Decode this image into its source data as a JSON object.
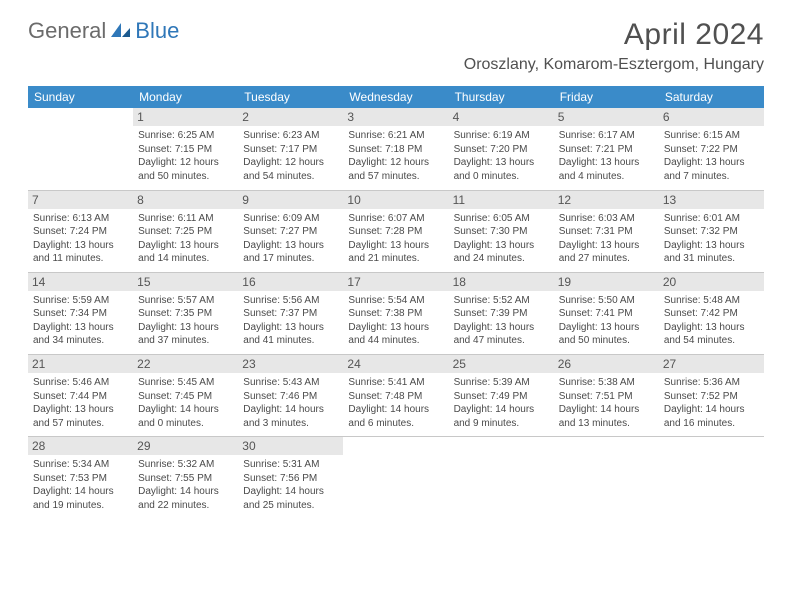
{
  "logo": {
    "general": "General",
    "blue": "Blue"
  },
  "title": "April 2024",
  "location": "Oroszlany, Komarom-Esztergom, Hungary",
  "weekdays": [
    "Sunday",
    "Monday",
    "Tuesday",
    "Wednesday",
    "Thursday",
    "Friday",
    "Saturday"
  ],
  "colors": {
    "header_bg": "#3a8bc9",
    "daynum_bg": "#e7e7e7",
    "text": "#4a4a4a",
    "border": "#c8c8c8"
  },
  "days": [
    {
      "n": "1",
      "sunrise": "6:25 AM",
      "sunset": "7:15 PM",
      "daylight": "12 hours and 50 minutes."
    },
    {
      "n": "2",
      "sunrise": "6:23 AM",
      "sunset": "7:17 PM",
      "daylight": "12 hours and 54 minutes."
    },
    {
      "n": "3",
      "sunrise": "6:21 AM",
      "sunset": "7:18 PM",
      "daylight": "12 hours and 57 minutes."
    },
    {
      "n": "4",
      "sunrise": "6:19 AM",
      "sunset": "7:20 PM",
      "daylight": "13 hours and 0 minutes."
    },
    {
      "n": "5",
      "sunrise": "6:17 AM",
      "sunset": "7:21 PM",
      "daylight": "13 hours and 4 minutes."
    },
    {
      "n": "6",
      "sunrise": "6:15 AM",
      "sunset": "7:22 PM",
      "daylight": "13 hours and 7 minutes."
    },
    {
      "n": "7",
      "sunrise": "6:13 AM",
      "sunset": "7:24 PM",
      "daylight": "13 hours and 11 minutes."
    },
    {
      "n": "8",
      "sunrise": "6:11 AM",
      "sunset": "7:25 PM",
      "daylight": "13 hours and 14 minutes."
    },
    {
      "n": "9",
      "sunrise": "6:09 AM",
      "sunset": "7:27 PM",
      "daylight": "13 hours and 17 minutes."
    },
    {
      "n": "10",
      "sunrise": "6:07 AM",
      "sunset": "7:28 PM",
      "daylight": "13 hours and 21 minutes."
    },
    {
      "n": "11",
      "sunrise": "6:05 AM",
      "sunset": "7:30 PM",
      "daylight": "13 hours and 24 minutes."
    },
    {
      "n": "12",
      "sunrise": "6:03 AM",
      "sunset": "7:31 PM",
      "daylight": "13 hours and 27 minutes."
    },
    {
      "n": "13",
      "sunrise": "6:01 AM",
      "sunset": "7:32 PM",
      "daylight": "13 hours and 31 minutes."
    },
    {
      "n": "14",
      "sunrise": "5:59 AM",
      "sunset": "7:34 PM",
      "daylight": "13 hours and 34 minutes."
    },
    {
      "n": "15",
      "sunrise": "5:57 AM",
      "sunset": "7:35 PM",
      "daylight": "13 hours and 37 minutes."
    },
    {
      "n": "16",
      "sunrise": "5:56 AM",
      "sunset": "7:37 PM",
      "daylight": "13 hours and 41 minutes."
    },
    {
      "n": "17",
      "sunrise": "5:54 AM",
      "sunset": "7:38 PM",
      "daylight": "13 hours and 44 minutes."
    },
    {
      "n": "18",
      "sunrise": "5:52 AM",
      "sunset": "7:39 PM",
      "daylight": "13 hours and 47 minutes."
    },
    {
      "n": "19",
      "sunrise": "5:50 AM",
      "sunset": "7:41 PM",
      "daylight": "13 hours and 50 minutes."
    },
    {
      "n": "20",
      "sunrise": "5:48 AM",
      "sunset": "7:42 PM",
      "daylight": "13 hours and 54 minutes."
    },
    {
      "n": "21",
      "sunrise": "5:46 AM",
      "sunset": "7:44 PM",
      "daylight": "13 hours and 57 minutes."
    },
    {
      "n": "22",
      "sunrise": "5:45 AM",
      "sunset": "7:45 PM",
      "daylight": "14 hours and 0 minutes."
    },
    {
      "n": "23",
      "sunrise": "5:43 AM",
      "sunset": "7:46 PM",
      "daylight": "14 hours and 3 minutes."
    },
    {
      "n": "24",
      "sunrise": "5:41 AM",
      "sunset": "7:48 PM",
      "daylight": "14 hours and 6 minutes."
    },
    {
      "n": "25",
      "sunrise": "5:39 AM",
      "sunset": "7:49 PM",
      "daylight": "14 hours and 9 minutes."
    },
    {
      "n": "26",
      "sunrise": "5:38 AM",
      "sunset": "7:51 PM",
      "daylight": "14 hours and 13 minutes."
    },
    {
      "n": "27",
      "sunrise": "5:36 AM",
      "sunset": "7:52 PM",
      "daylight": "14 hours and 16 minutes."
    },
    {
      "n": "28",
      "sunrise": "5:34 AM",
      "sunset": "7:53 PM",
      "daylight": "14 hours and 19 minutes."
    },
    {
      "n": "29",
      "sunrise": "5:32 AM",
      "sunset": "7:55 PM",
      "daylight": "14 hours and 22 minutes."
    },
    {
      "n": "30",
      "sunrise": "5:31 AM",
      "sunset": "7:56 PM",
      "daylight": "14 hours and 25 minutes."
    }
  ],
  "labels": {
    "sunrise": "Sunrise:",
    "sunset": "Sunset:",
    "daylight": "Daylight:"
  },
  "start_offset": 1
}
